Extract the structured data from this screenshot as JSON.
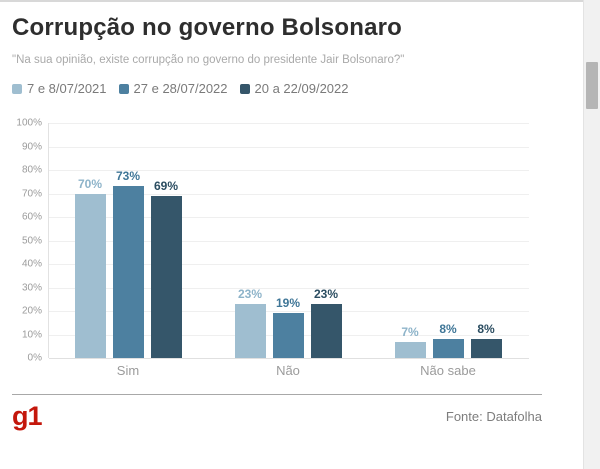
{
  "page": {
    "title": "Corrupção no governo Bolsonaro",
    "subtitle": "\"Na sua opinião, existe corrupção no governo do presidente Jair Bolsonaro?\"",
    "source": "Fonte: Datafolha",
    "logo": "g1"
  },
  "colors": {
    "logo_red": "#c4170c",
    "grid": "#efefef",
    "axis": "#e2e2e2"
  },
  "chart_data": {
    "type": "bar",
    "title": "Corrupção no governo Bolsonaro",
    "subtitle": "\"Na sua opinião, existe corrupção no governo do presidente Jair Bolsonaro?\"",
    "categories": [
      "Sim",
      "Não",
      "Não sabe"
    ],
    "series": [
      {
        "name": "7 e 8/07/2021",
        "color": "#9fbed0",
        "label_color": "#8db3c9",
        "values": [
          70,
          23,
          7
        ]
      },
      {
        "name": "27 e 28/07/2022",
        "color": "#4d80a0",
        "label_color": "#3f7697",
        "values": [
          73,
          19,
          8
        ]
      },
      {
        "name": "20 a 22/09/2022",
        "color": "#35566a",
        "label_color": "#2b4d61",
        "values": [
          69,
          23,
          8
        ]
      }
    ],
    "ylim": [
      0,
      100
    ],
    "ytick_step": 10,
    "ytick_labels": [
      "0%",
      "10%",
      "20%",
      "30%",
      "40%",
      "50%",
      "60%",
      "70%",
      "80%",
      "90%",
      "100%"
    ],
    "value_label_format": "percent",
    "legend_position": "top",
    "grid": "horizontal",
    "source": "Fonte: Datafolha"
  }
}
